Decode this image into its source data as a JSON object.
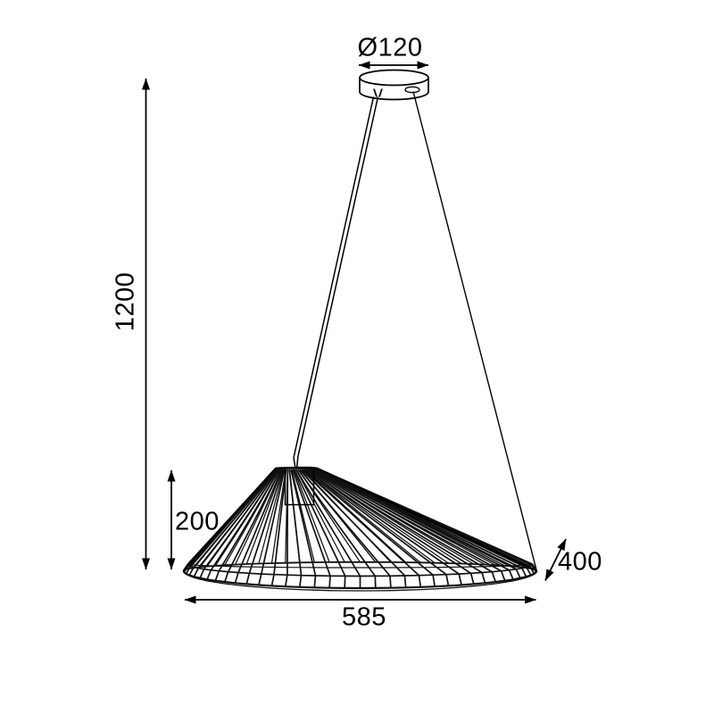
{
  "drawing": {
    "kind": "pendant-lamp-dimensional-drawing",
    "background_color": "#ffffff",
    "line_color": "#000000",
    "labels": {
      "canopy_diameter": "Ø120",
      "total_height": "1200",
      "shade_height": "200",
      "shade_width": "585",
      "shade_depth": "400"
    }
  }
}
